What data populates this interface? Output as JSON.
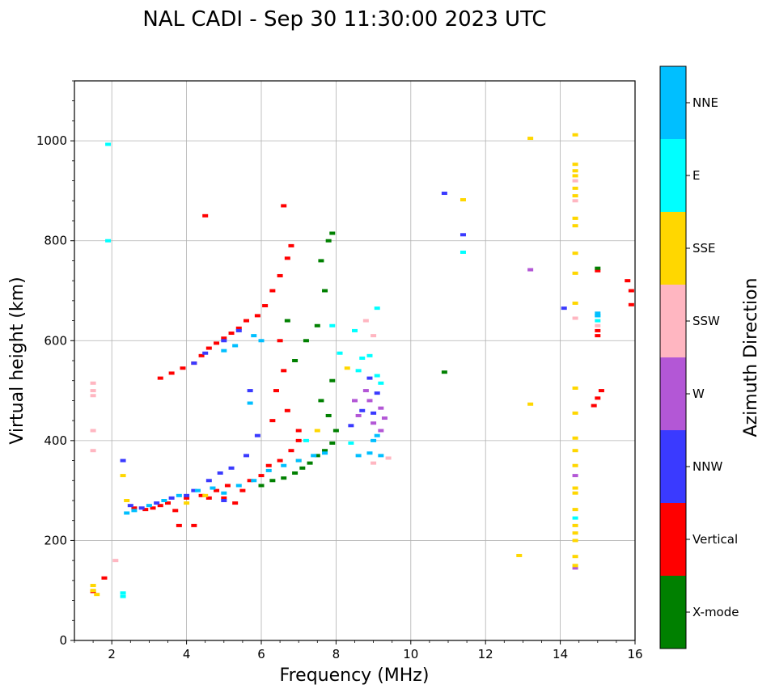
{
  "chart_data": {
    "type": "scatter",
    "title": "NAL CADI - Sep 30 11:30:00 2023 UTC",
    "xlabel": "Frequency (MHz)",
    "ylabel": "Virtual height (km)",
    "xlim": [
      1,
      16
    ],
    "ylim": [
      0,
      1120
    ],
    "xticks": [
      2,
      4,
      6,
      8,
      10,
      12,
      14,
      16
    ],
    "yticks": [
      0,
      200,
      400,
      600,
      800,
      1000
    ],
    "xtick_labels": [
      "2",
      "4",
      "6",
      "8",
      "10",
      "12",
      "14",
      "16"
    ],
    "ytick_labels": [
      "0",
      "200",
      "400",
      "600",
      "800",
      "1000"
    ],
    "grid": true,
    "colorbar": {
      "label": "Azimuth Direction",
      "categories": [
        {
          "name": "X-mode",
          "color": "#008000"
        },
        {
          "name": "Vertical",
          "color": "#ff0000"
        },
        {
          "name": "NNW",
          "color": "#3a3aff"
        },
        {
          "name": "W",
          "color": "#b357d6"
        },
        {
          "name": "SSW",
          "color": "#ffb6c1"
        },
        {
          "name": "SSE",
          "color": "#ffd700"
        },
        {
          "name": "E",
          "color": "#00ffff"
        },
        {
          "name": "NNE",
          "color": "#00bfff"
        }
      ]
    },
    "series": [
      {
        "name": "Vertical",
        "color": "#ff0000",
        "points": [
          [
            2.6,
            265
          ],
          [
            2.9,
            262
          ],
          [
            3.1,
            265
          ],
          [
            3.3,
            270
          ],
          [
            3.5,
            275
          ],
          [
            3.7,
            260
          ],
          [
            3.8,
            230
          ],
          [
            4.0,
            285
          ],
          [
            4.2,
            230
          ],
          [
            4.4,
            290
          ],
          [
            4.6,
            285
          ],
          [
            4.8,
            300
          ],
          [
            5.0,
            285
          ],
          [
            5.1,
            310
          ],
          [
            5.3,
            275
          ],
          [
            5.5,
            300
          ],
          [
            5.7,
            320
          ],
          [
            6.0,
            330
          ],
          [
            6.2,
            350
          ],
          [
            6.5,
            360
          ],
          [
            6.8,
            380
          ],
          [
            7.0,
            400
          ],
          [
            3.3,
            525
          ],
          [
            3.6,
            535
          ],
          [
            3.9,
            545
          ],
          [
            4.2,
            555
          ],
          [
            4.4,
            570
          ],
          [
            4.6,
            585
          ],
          [
            4.8,
            595
          ],
          [
            5.0,
            605
          ],
          [
            5.2,
            615
          ],
          [
            5.4,
            625
          ],
          [
            5.6,
            640
          ],
          [
            5.9,
            650
          ],
          [
            6.1,
            670
          ],
          [
            6.3,
            700
          ],
          [
            6.5,
            730
          ],
          [
            6.7,
            765
          ],
          [
            6.8,
            790
          ],
          [
            6.6,
            870
          ],
          [
            4.5,
            850
          ],
          [
            6.5,
            600
          ],
          [
            6.6,
            540
          ],
          [
            6.4,
            500
          ],
          [
            6.7,
            460
          ],
          [
            7.0,
            420
          ],
          [
            6.3,
            440
          ],
          [
            1.5,
            98
          ],
          [
            1.8,
            125
          ],
          [
            14.9,
            470
          ],
          [
            15.0,
            485
          ],
          [
            15.1,
            500
          ],
          [
            15.0,
            620
          ],
          [
            15.0,
            610
          ],
          [
            15.8,
            720
          ],
          [
            15.9,
            700
          ],
          [
            15.9,
            672
          ],
          [
            15.0,
            740
          ]
        ]
      },
      {
        "name": "X-mode",
        "color": "#008000",
        "points": [
          [
            6.0,
            310
          ],
          [
            6.3,
            320
          ],
          [
            6.6,
            325
          ],
          [
            6.9,
            335
          ],
          [
            7.1,
            345
          ],
          [
            7.3,
            355
          ],
          [
            7.5,
            370
          ],
          [
            7.7,
            380
          ],
          [
            7.9,
            395
          ],
          [
            8.0,
            420
          ],
          [
            7.8,
            450
          ],
          [
            7.6,
            480
          ],
          [
            7.9,
            520
          ],
          [
            6.9,
            560
          ],
          [
            7.2,
            600
          ],
          [
            7.5,
            630
          ],
          [
            7.7,
            700
          ],
          [
            7.6,
            760
          ],
          [
            7.8,
            800
          ],
          [
            7.9,
            815
          ],
          [
            6.7,
            640
          ],
          [
            10.9,
            537
          ],
          [
            15.0,
            745
          ]
        ]
      },
      {
        "name": "NNW",
        "color": "#3a3aff",
        "points": [
          [
            2.3,
            360
          ],
          [
            2.5,
            270
          ],
          [
            2.8,
            265
          ],
          [
            3.2,
            275
          ],
          [
            3.6,
            285
          ],
          [
            4.2,
            300
          ],
          [
            4.6,
            320
          ],
          [
            4.9,
            335
          ],
          [
            5.2,
            345
          ],
          [
            5.6,
            370
          ],
          [
            5.9,
            410
          ],
          [
            5.7,
            500
          ],
          [
            8.9,
            525
          ],
          [
            9.0,
            455
          ],
          [
            9.1,
            495
          ],
          [
            8.7,
            460
          ],
          [
            8.4,
            430
          ],
          [
            4.0,
            290
          ],
          [
            5.0,
            280
          ],
          [
            14.1,
            665
          ],
          [
            11.4,
            812
          ],
          [
            10.9,
            895
          ],
          [
            4.2,
            555
          ],
          [
            4.5,
            575
          ],
          [
            5.0,
            600
          ],
          [
            5.4,
            620
          ]
        ]
      },
      {
        "name": "W",
        "color": "#b357d6",
        "points": [
          [
            8.6,
            450
          ],
          [
            8.9,
            480
          ],
          [
            9.0,
            435
          ],
          [
            9.2,
            465
          ],
          [
            9.3,
            445
          ],
          [
            9.2,
            420
          ],
          [
            8.8,
            500
          ],
          [
            8.5,
            480
          ],
          [
            13.2,
            742
          ],
          [
            14.4,
            145
          ],
          [
            14.4,
            330
          ]
        ]
      },
      {
        "name": "SSW",
        "color": "#ffb6c1",
        "points": [
          [
            1.5,
            515
          ],
          [
            1.5,
            500
          ],
          [
            1.5,
            490
          ],
          [
            1.5,
            420
          ],
          [
            1.5,
            380
          ],
          [
            2.1,
            160
          ],
          [
            8.8,
            640
          ],
          [
            9.0,
            610
          ],
          [
            9.4,
            365
          ],
          [
            9.0,
            355
          ],
          [
            14.4,
            645
          ],
          [
            15.0,
            630
          ],
          [
            14.4,
            880
          ],
          [
            14.4,
            920
          ]
        ]
      },
      {
        "name": "SSE",
        "color": "#ffd700",
        "points": [
          [
            1.5,
            110
          ],
          [
            1.5,
            100
          ],
          [
            1.6,
            92
          ],
          [
            2.3,
            330
          ],
          [
            2.4,
            280
          ],
          [
            4.0,
            275
          ],
          [
            4.5,
            290
          ],
          [
            7.0,
            360
          ],
          [
            7.5,
            420
          ],
          [
            8.3,
            545
          ],
          [
            11.4,
            882
          ],
          [
            13.2,
            473
          ],
          [
            13.2,
            1005
          ],
          [
            12.9,
            170
          ],
          [
            14.4,
            1012
          ],
          [
            14.4,
            953
          ],
          [
            14.4,
            940
          ],
          [
            14.4,
            930
          ],
          [
            14.4,
            905
          ],
          [
            14.4,
            890
          ],
          [
            14.4,
            845
          ],
          [
            14.4,
            830
          ],
          [
            14.4,
            775
          ],
          [
            14.4,
            735
          ],
          [
            14.4,
            675
          ],
          [
            14.4,
            505
          ],
          [
            14.4,
            455
          ],
          [
            14.4,
            405
          ],
          [
            14.4,
            380
          ],
          [
            14.4,
            350
          ],
          [
            14.4,
            305
          ],
          [
            14.4,
            295
          ],
          [
            14.4,
            262
          ],
          [
            14.4,
            230
          ],
          [
            14.4,
            215
          ],
          [
            14.4,
            200
          ],
          [
            14.4,
            168
          ],
          [
            14.4,
            150
          ]
        ]
      },
      {
        "name": "E",
        "color": "#00ffff",
        "points": [
          [
            2.3,
            95
          ],
          [
            2.3,
            88
          ],
          [
            8.5,
            620
          ],
          [
            8.7,
            565
          ],
          [
            8.9,
            570
          ],
          [
            9.1,
            530
          ],
          [
            9.2,
            515
          ],
          [
            8.6,
            540
          ],
          [
            8.4,
            395
          ],
          [
            8.1,
            575
          ],
          [
            9.1,
            665
          ],
          [
            7.9,
            630
          ],
          [
            7.2,
            400
          ],
          [
            14.4,
            245
          ],
          [
            15.0,
            650
          ],
          [
            15.0,
            640
          ],
          [
            11.4,
            777
          ],
          [
            1.9,
            800
          ],
          [
            1.9,
            993
          ]
        ]
      },
      {
        "name": "NNE",
        "color": "#00bfff",
        "points": [
          [
            2.4,
            255
          ],
          [
            2.6,
            260
          ],
          [
            3.0,
            270
          ],
          [
            3.4,
            280
          ],
          [
            3.8,
            290
          ],
          [
            4.3,
            300
          ],
          [
            4.7,
            305
          ],
          [
            5.0,
            295
          ],
          [
            5.4,
            310
          ],
          [
            5.8,
            320
          ],
          [
            6.2,
            340
          ],
          [
            6.6,
            350
          ],
          [
            7.0,
            360
          ],
          [
            7.4,
            370
          ],
          [
            7.7,
            375
          ],
          [
            8.9,
            375
          ],
          [
            9.2,
            370
          ],
          [
            8.6,
            370
          ],
          [
            9.1,
            410
          ],
          [
            9.0,
            400
          ],
          [
            15.0,
            650
          ],
          [
            15.0,
            655
          ],
          [
            5.0,
            580
          ],
          [
            5.3,
            590
          ],
          [
            5.8,
            610
          ],
          [
            6.0,
            600
          ],
          [
            5.7,
            475
          ]
        ]
      }
    ]
  }
}
